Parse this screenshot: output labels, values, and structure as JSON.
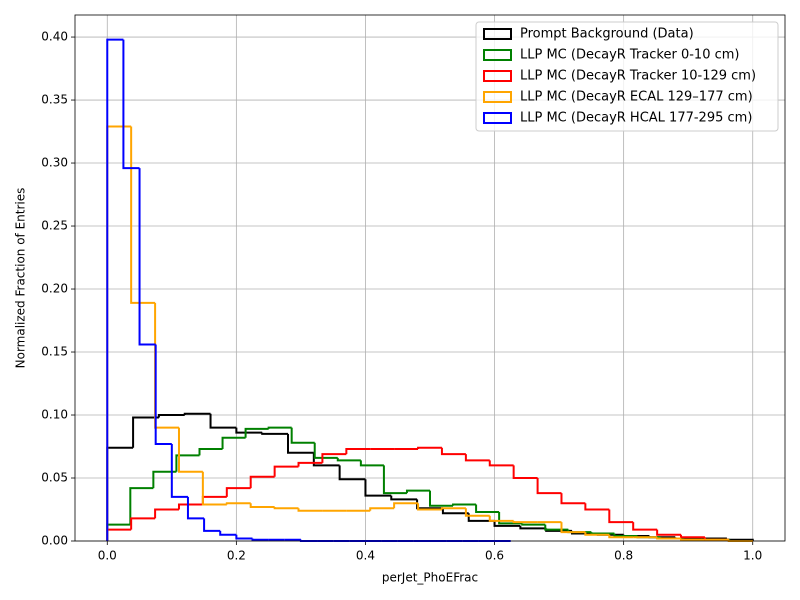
{
  "chart_data": {
    "type": "histogram",
    "xlabel": "perJet_PhoEFrac",
    "ylabel": "Normalized Fraction of Entries",
    "xlim": [
      -0.05,
      1.05
    ],
    "ylim": [
      0,
      0.4175
    ],
    "xticks": [
      {
        "value": 0,
        "label": "0.0"
      },
      {
        "value": 0.2,
        "label": "0.2"
      },
      {
        "value": 0.4,
        "label": "0.4"
      },
      {
        "value": 0.6,
        "label": "0.6"
      },
      {
        "value": 0.8,
        "label": "0.8"
      },
      {
        "value": 1,
        "label": "1.0"
      }
    ],
    "yticks": [
      {
        "value": 0,
        "label": "0.00"
      },
      {
        "value": 0.05,
        "label": "0.05"
      },
      {
        "value": 0.1,
        "label": "0.10"
      },
      {
        "value": 0.15,
        "label": "0.15"
      },
      {
        "value": 0.2,
        "label": "0.20"
      },
      {
        "value": 0.25,
        "label": "0.25"
      },
      {
        "value": 0.3,
        "label": "0.30"
      },
      {
        "value": 0.35,
        "label": "0.35"
      },
      {
        "value": 0.4,
        "label": "0.40"
      }
    ],
    "grid": true,
    "legend": "upper right",
    "series": [
      {
        "name": "Prompt Background (Data)",
        "color": "#000000",
        "bins": [
          0,
          0.04,
          0.08,
          0.12,
          0.16,
          0.2,
          0.24,
          0.28,
          0.32,
          0.36,
          0.4,
          0.44,
          0.48,
          0.52,
          0.56,
          0.6,
          0.64,
          0.68,
          0.72,
          0.76,
          0.8,
          0.84,
          0.88,
          0.92,
          0.96,
          1
        ],
        "values": [
          0.074,
          0.098,
          0.1,
          0.101,
          0.09,
          0.086,
          0.085,
          0.07,
          0.06,
          0.049,
          0.036,
          0.033,
          0.026,
          0.022,
          0.016,
          0.012,
          0.01,
          0.008,
          0.006,
          0.005,
          0.004,
          0.003,
          0.002,
          0.002,
          0.001
        ]
      },
      {
        "name": "LLP MC (DecayR Tracker 0-10 cm)",
        "color": "#008000",
        "bins": [
          0,
          0.0357,
          0.0714,
          0.1071,
          0.1429,
          0.1786,
          0.2143,
          0.25,
          0.2857,
          0.3214,
          0.3571,
          0.3929,
          0.4286,
          0.4643,
          0.5,
          0.5357,
          0.5714,
          0.6071,
          0.6429,
          0.6786,
          0.7143,
          0.75,
          0.7857,
          0.8214,
          0.8571,
          0.8929,
          0.9286,
          0.9643,
          1
        ],
        "values": [
          0.013,
          0.042,
          0.055,
          0.068,
          0.073,
          0.082,
          0.089,
          0.09,
          0.078,
          0.066,
          0.064,
          0.06,
          0.038,
          0.04,
          0.028,
          0.029,
          0.023,
          0.014,
          0.013,
          0.009,
          0.007,
          0.006,
          0.004,
          0.003,
          0.002,
          0.001,
          0.001,
          0
        ]
      },
      {
        "name": "LLP MC (DecayR Tracker 10-129 cm)",
        "color": "#ff0000",
        "bins": [
          0,
          0.037,
          0.0741,
          0.1111,
          0.1481,
          0.1852,
          0.2222,
          0.2593,
          0.2963,
          0.3333,
          0.3704,
          0.4074,
          0.4444,
          0.4815,
          0.5185,
          0.5556,
          0.5926,
          0.6296,
          0.6667,
          0.7037,
          0.7407,
          0.7778,
          0.8148,
          0.8519,
          0.8889,
          0.9259,
          0.963,
          1
        ],
        "values": [
          0.009,
          0.018,
          0.025,
          0.029,
          0.035,
          0.042,
          0.051,
          0.059,
          0.062,
          0.069,
          0.073,
          0.073,
          0.073,
          0.074,
          0.069,
          0.064,
          0.06,
          0.05,
          0.038,
          0.03,
          0.025,
          0.015,
          0.009,
          0.005,
          0.003,
          0.001,
          0
        ]
      },
      {
        "name": "LLP MC (DecayR ECAL 129–177 cm)",
        "color": "#ffa500",
        "bins": [
          0,
          0.037,
          0.0741,
          0.1111,
          0.1481,
          0.1852,
          0.2222,
          0.2593,
          0.2963,
          0.3333,
          0.3704,
          0.4074,
          0.4444,
          0.4815,
          0.5185,
          0.5556,
          0.5926,
          0.6296,
          0.6667,
          0.7037,
          0.7407,
          0.7778,
          0.8148,
          0.8519,
          0.8889,
          0.9259,
          0.963,
          1
        ],
        "values": [
          0.329,
          0.189,
          0.09,
          0.055,
          0.029,
          0.03,
          0.027,
          0.026,
          0.024,
          0.024,
          0.024,
          0.026,
          0.03,
          0.025,
          0.026,
          0.02,
          0.016,
          0.015,
          0.015,
          0.007,
          0.005,
          0.003,
          0.003,
          0.002,
          0.001,
          0.001,
          0
        ]
      },
      {
        "name": "LLP MC (DecayR HCAL 177-295 cm)",
        "color": "#0000ff",
        "bins": [
          0,
          0.025,
          0.05,
          0.075,
          0.1,
          0.125,
          0.15,
          0.175,
          0.2,
          0.225,
          0.25,
          0.275,
          0.3,
          0.325,
          0.35,
          0.375,
          0.4,
          0.425,
          0.45,
          0.475,
          0.5,
          0.525,
          0.55,
          0.575,
          0.6,
          0.625
        ],
        "values": [
          0.398,
          0.296,
          0.156,
          0.077,
          0.035,
          0.018,
          0.008,
          0.005,
          0.002,
          0.001,
          0.001,
          0.001,
          0,
          0,
          0,
          0,
          0,
          0,
          0,
          0,
          0,
          0,
          0,
          0,
          0
        ]
      }
    ]
  }
}
